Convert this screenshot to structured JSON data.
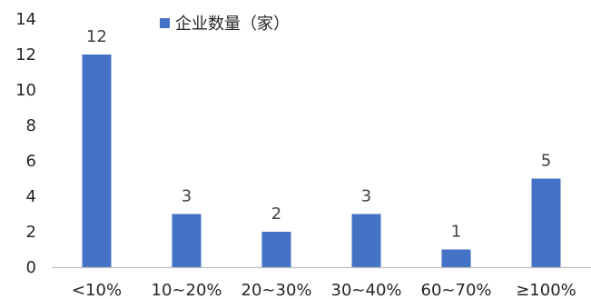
{
  "chart_data": {
    "type": "bar",
    "categories": [
      "<10%",
      "10~20%",
      "20~30%",
      "30~40%",
      "60~70%",
      "≥100%"
    ],
    "series": [
      {
        "name": "企业数量（家）",
        "values": [
          12,
          3,
          2,
          3,
          1,
          5
        ],
        "color": "#4472C4"
      }
    ],
    "ylim": [
      0,
      14
    ],
    "yticks": [
      0,
      2,
      4,
      6,
      8,
      10,
      12,
      14
    ],
    "grid": false,
    "legend_position": "top-left",
    "data_labels": true
  }
}
